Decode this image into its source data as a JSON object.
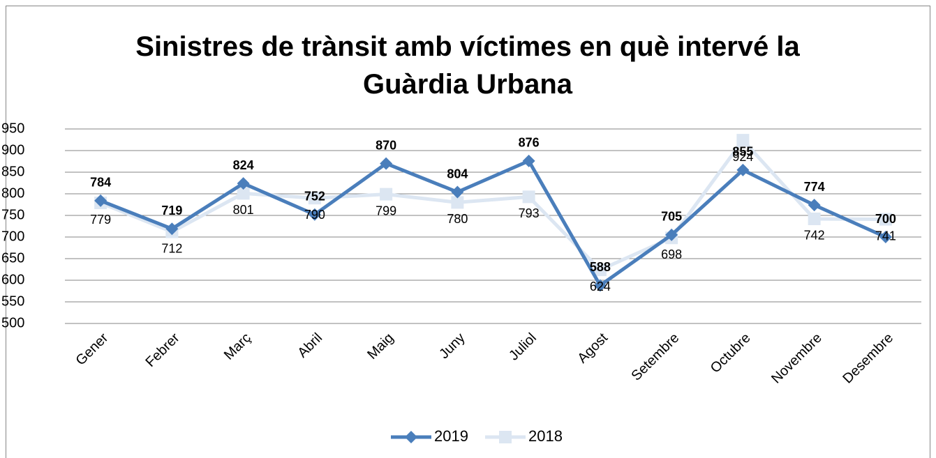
{
  "chart_data": {
    "type": "line",
    "title": "Sinistres de trànsit amb víctimes en què intervé la Guàrdia Urbana",
    "categories": [
      "Gener",
      "Febrer",
      "Març",
      "Abril",
      "Maig",
      "Juny",
      "Juliol",
      "Agost",
      "Setembre",
      "Octubre",
      "Novembre",
      "Desembre"
    ],
    "series": [
      {
        "name": "2019",
        "color": "#4a7ebb",
        "values": [
          784,
          719,
          824,
          752,
          870,
          804,
          876,
          588,
          705,
          855,
          774,
          700
        ]
      },
      {
        "name": "2018",
        "color": "#dce6f2",
        "values": [
          779,
          712,
          801,
          790,
          799,
          780,
          793,
          624,
          698,
          924,
          742,
          741
        ]
      }
    ],
    "ylim": [
      500,
      950
    ],
    "yticks": [
      500,
      550,
      600,
      650,
      700,
      750,
      800,
      850,
      900,
      950
    ],
    "grid": true,
    "legend": "bottom"
  }
}
